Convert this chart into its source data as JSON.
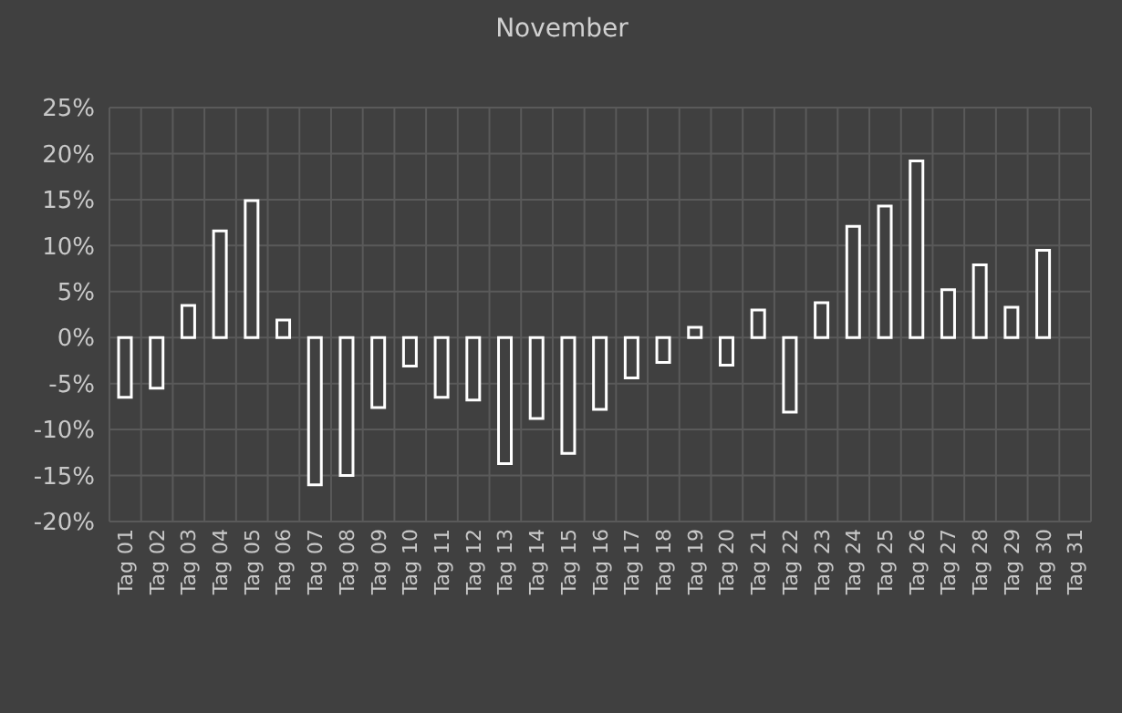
{
  "chart_data": {
    "type": "bar",
    "categories": [
      "Tag 01",
      "Tag 02",
      "Tag 03",
      "Tag 04",
      "Tag 05",
      "Tag 06",
      "Tag 07",
      "Tag 08",
      "Tag 09",
      "Tag 10",
      "Tag 11",
      "Tag 12",
      "Tag 13",
      "Tag 14",
      "Tag 15",
      "Tag 16",
      "Tag 17",
      "Tag 18",
      "Tag 19",
      "Tag 20",
      "Tag 21",
      "Tag 22",
      "Tag 23",
      "Tag 24",
      "Tag 25",
      "Tag 26",
      "Tag 27",
      "Tag 28",
      "Tag 29",
      "Tag 30",
      "Tag 31"
    ],
    "series": [
      {
        "name": "November",
        "color": "#ffffff",
        "values": [
          -6.5,
          -5.5,
          3.5,
          11.6,
          14.9,
          1.9,
          -16.0,
          -15.0,
          -7.6,
          -3.1,
          -6.5,
          -6.8,
          -13.7,
          -8.8,
          -12.6,
          -7.8,
          -4.4,
          -2.7,
          1.1,
          -3.0,
          3.0,
          -8.1,
          3.8,
          12.1,
          14.3,
          19.2,
          5.2,
          7.9,
          3.3,
          9.5,
          null
        ]
      }
    ],
    "ylim": [
      -20,
      25
    ],
    "yticks": [
      {
        "value": -20,
        "label": "-20%"
      },
      {
        "value": -15,
        "label": "-15%"
      },
      {
        "value": -10,
        "label": "-10%"
      },
      {
        "value": -5,
        "label": "-5%"
      },
      {
        "value": 0,
        "label": "0%"
      },
      {
        "value": 5,
        "label": "5%"
      },
      {
        "value": 10,
        "label": "10%"
      },
      {
        "value": 15,
        "label": "15%"
      },
      {
        "value": 20,
        "label": "20%"
      },
      {
        "value": 25,
        "label": "25%"
      }
    ],
    "grid": true,
    "legend": "top"
  }
}
